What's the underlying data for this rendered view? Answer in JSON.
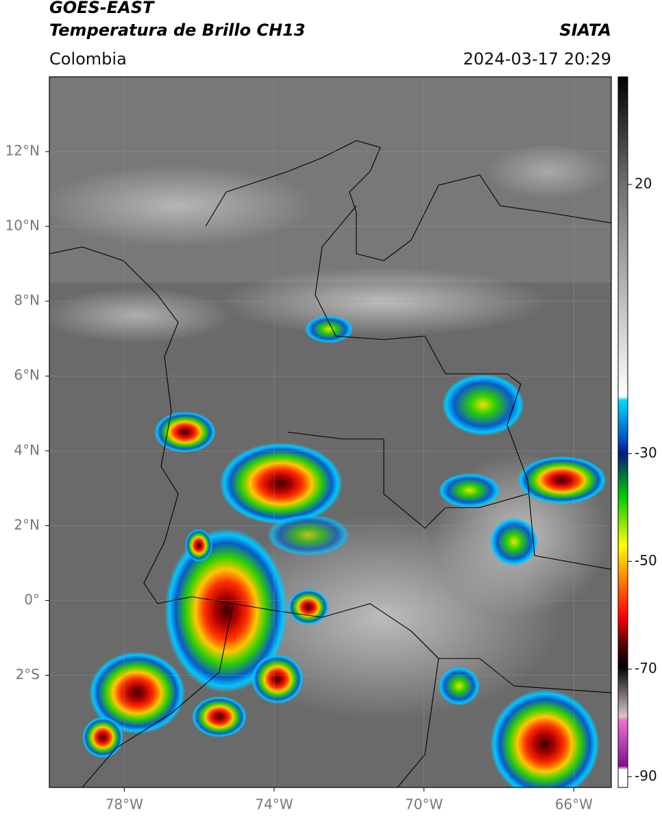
{
  "header": {
    "title": "GOES-EAST",
    "subtitle": "Temperatura de Brillo CH13",
    "source": "SIATA",
    "region": "Colombia",
    "timestamp": "2024-03-17 20:29"
  },
  "map": {
    "xlim": [
      -80,
      -65
    ],
    "ylim": [
      -5,
      14
    ],
    "xticks": [
      {
        "value": -78,
        "label": "78°W"
      },
      {
        "value": -74,
        "label": "74°W"
      },
      {
        "value": -70,
        "label": "70°W"
      },
      {
        "value": -66,
        "label": "66°W"
      }
    ],
    "yticks": [
      {
        "value": 12,
        "label": "12°N"
      },
      {
        "value": 10,
        "label": "10°N"
      },
      {
        "value": 8,
        "label": "8°N"
      },
      {
        "value": 6,
        "label": "6°N"
      },
      {
        "value": 4,
        "label": "4°N"
      },
      {
        "value": 2,
        "label": "2°N"
      },
      {
        "value": 0,
        "label": "0°"
      },
      {
        "value": -2,
        "label": "2°S"
      }
    ],
    "grid": true
  },
  "colorbar": {
    "clim": [
      -92,
      40
    ],
    "ticks": [
      20,
      -30,
      -50,
      -70,
      -90
    ]
  }
}
